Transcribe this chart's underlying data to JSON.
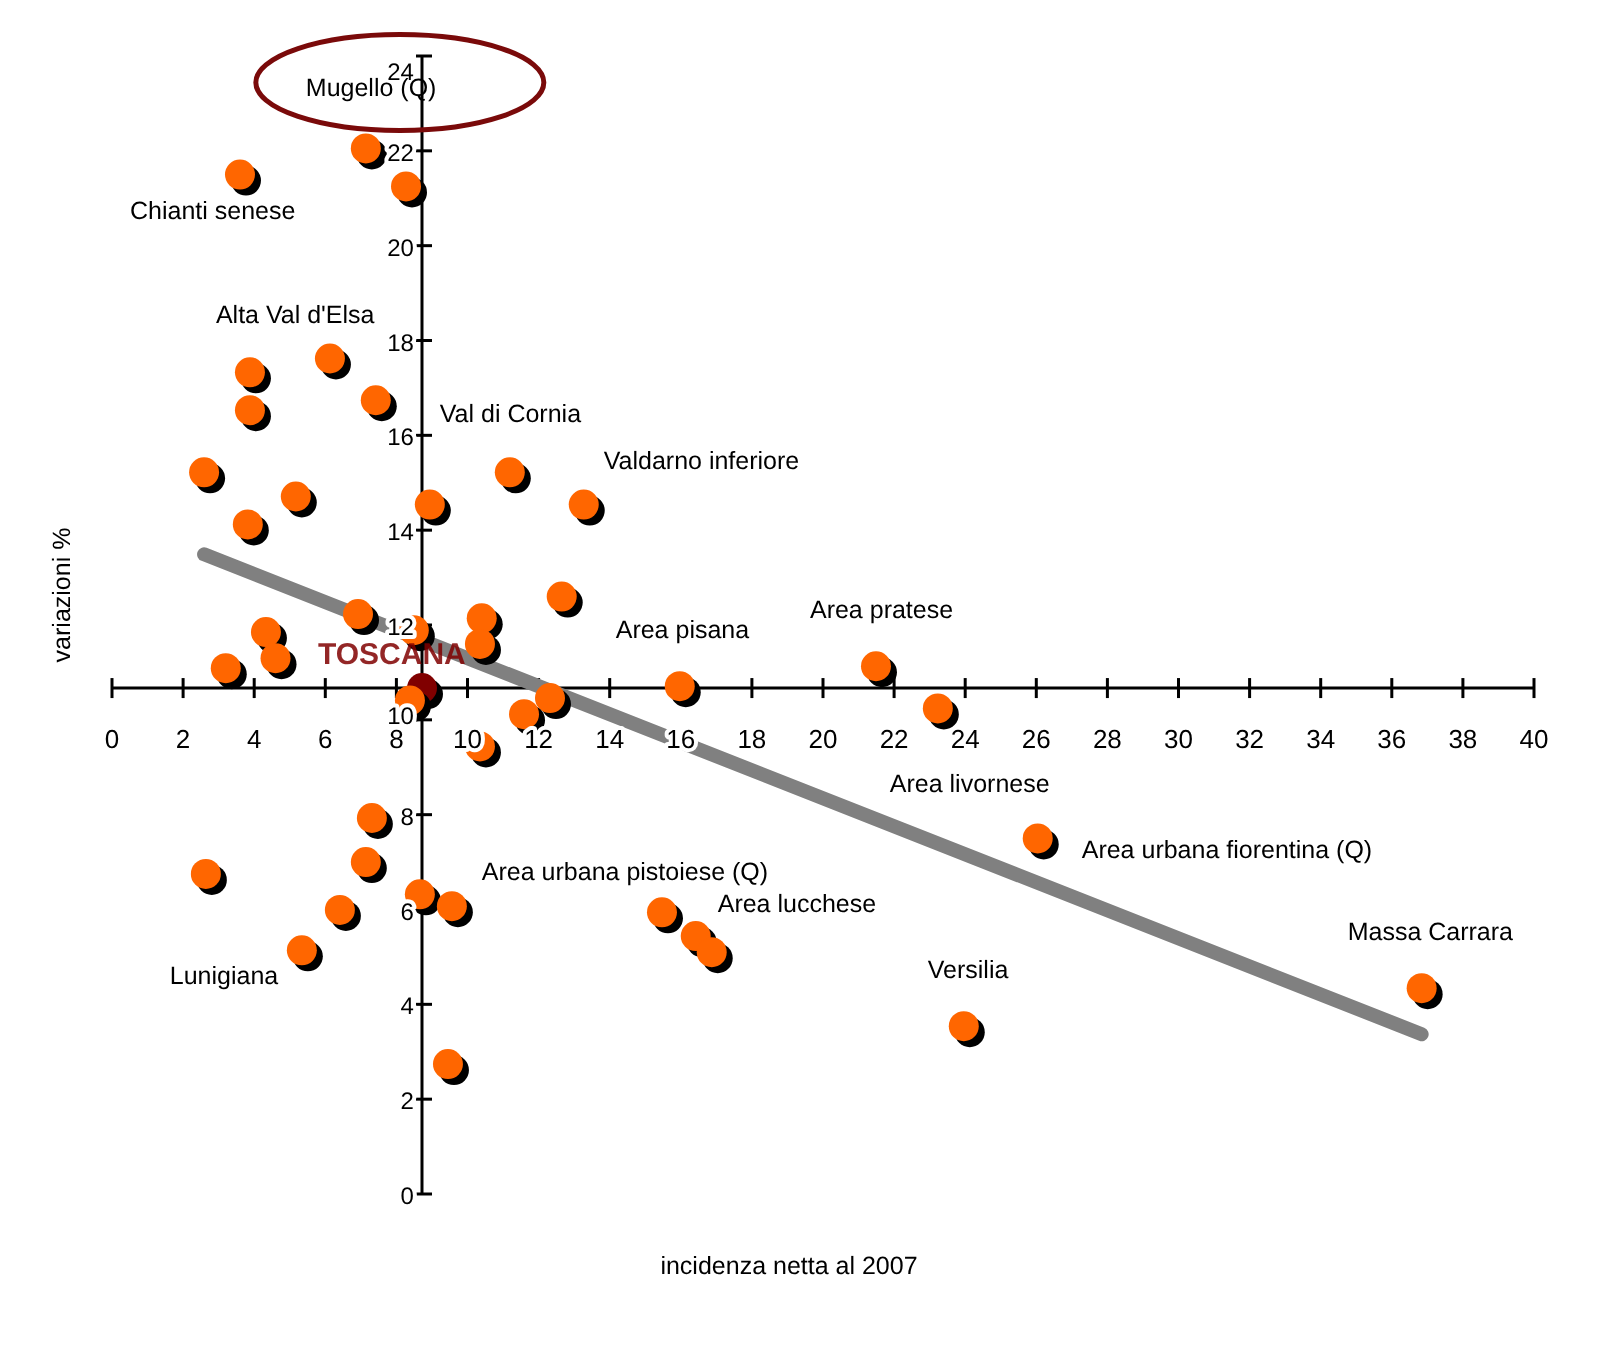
{
  "chart_data": {
    "type": "scatter",
    "xlabel": "incidenza netta al 2007",
    "ylabel": "variazioni %",
    "xlim": [
      0,
      40
    ],
    "xticks": [
      0,
      2,
      4,
      6,
      8,
      10,
      12,
      14,
      16,
      18,
      20,
      22,
      24,
      26,
      28,
      30,
      32,
      34,
      36,
      38,
      40
    ],
    "ylim": [
      0,
      24
    ],
    "yticks": [
      0,
      2,
      4,
      6,
      8,
      10,
      12,
      14,
      16,
      18,
      20,
      22,
      24
    ],
    "grid": false,
    "marker": "circle",
    "series": [
      {
        "type": "scatter",
        "color": "#ff6600",
        "x": [
          7.14,
          8.27,
          3.6,
          6.13,
          3.88,
          3.88,
          7.42,
          2.59,
          5.17,
          3.82,
          8.94,
          11.19,
          13.27,
          12.65,
          6.92,
          8.49,
          10.4,
          10.35,
          4.33,
          4.6,
          3.2,
          8.38,
          12.32,
          11.59,
          10.35,
          15.97,
          21.49,
          23.23,
          26.04,
          36.84,
          23.96,
          15.47,
          16.42,
          16.87,
          7.31,
          7.14,
          2.64,
          6.41,
          5.34,
          8.66,
          9.56,
          9.45
        ],
        "values": [
          22.05,
          21.25,
          21.5,
          17.62,
          17.33,
          16.53,
          16.74,
          15.22,
          14.71,
          14.12,
          14.54,
          15.22,
          14.54,
          12.6,
          12.23,
          11.89,
          12.14,
          11.6,
          11.85,
          11.3,
          11.09,
          10.41,
          10.46,
          10.12,
          9.44,
          10.71,
          11.13,
          10.24,
          7.5,
          4.34,
          3.54,
          5.94,
          5.44,
          5.1,
          7.93,
          7.0,
          6.75,
          5.99,
          5.14,
          6.32,
          6.07,
          2.74
        ]
      },
      {
        "type": "scatter",
        "color": "#800000",
        "x": [
          8.72
        ],
        "values": [
          10.67
        ]
      },
      {
        "type": "line",
        "color": "#808080",
        "x": [
          2.59,
          36.84
        ],
        "values": [
          13.49,
          3.37
        ],
        "marker": "none"
      }
    ],
    "annotations": [
      {
        "text": "Mugello (Q)",
        "x": 7.14,
        "y": 22.05
      },
      {
        "text": "Chianti senese",
        "x": 3.6,
        "y": 21.5
      },
      {
        "text": "Alta Val d'Elsa",
        "x": 6.13,
        "y": 17.62
      },
      {
        "text": "Val di Cornia",
        "x": 11.19,
        "y": 15.22
      },
      {
        "text": "Valdarno inferiore",
        "x": 13.27,
        "y": 14.54
      },
      {
        "text": "Area pisana",
        "x": 15.97,
        "y": 10.71
      },
      {
        "text": "Area pratese",
        "x": 21.49,
        "y": 11.13
      },
      {
        "text": "TOSCANA",
        "x": 8.72,
        "y": 10.67
      },
      {
        "text": "Area livornese",
        "x": 23.23,
        "y": 10.24
      },
      {
        "text": "Area urbana fiorentina (Q)",
        "x": 26.04,
        "y": 7.5
      },
      {
        "text": "Area urbana pistoiese (Q)",
        "x": 9.56,
        "y": 6.07
      },
      {
        "text": "Area lucchese",
        "x": 16.87,
        "y": 5.1
      },
      {
        "text": "Lunigiana",
        "x": 5.34,
        "y": 5.14
      },
      {
        "text": "Versilia",
        "x": 23.96,
        "y": 3.54
      },
      {
        "text": "Massa Carrara",
        "x": 36.84,
        "y": 4.34
      }
    ]
  }
}
